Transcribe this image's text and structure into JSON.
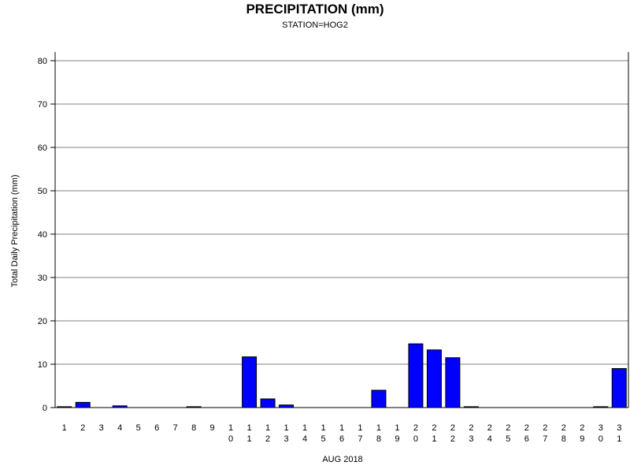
{
  "chart_data": {
    "type": "bar",
    "title": "PRECIPITATION (mm)",
    "subtitle": "STATION=HOG2",
    "xlabel": "AUG 2018",
    "ylabel": "Total Daily Precipitation (mm)",
    "ylim": [
      0,
      80
    ],
    "yticks": [
      "0",
      "10",
      "20",
      "30",
      "40",
      "50",
      "60",
      "70",
      "80"
    ],
    "grid": true,
    "bar_color": "#0000ff",
    "categories": [
      "1",
      "2",
      "3",
      "4",
      "5",
      "6",
      "7",
      "8",
      "9",
      "10",
      "11",
      "12",
      "13",
      "14",
      "15",
      "16",
      "17",
      "18",
      "19",
      "20",
      "21",
      "22",
      "23",
      "24",
      "25",
      "26",
      "27",
      "28",
      "29",
      "30",
      "31"
    ],
    "values": [
      0.2,
      1.2,
      0,
      0.4,
      0,
      0,
      0,
      0.2,
      0,
      0,
      11.7,
      2.0,
      0.6,
      0,
      0,
      0,
      0,
      4.0,
      0,
      14.7,
      13.3,
      11.5,
      0.2,
      0,
      0,
      0,
      0,
      0,
      0,
      0.2,
      9.0
    ]
  }
}
